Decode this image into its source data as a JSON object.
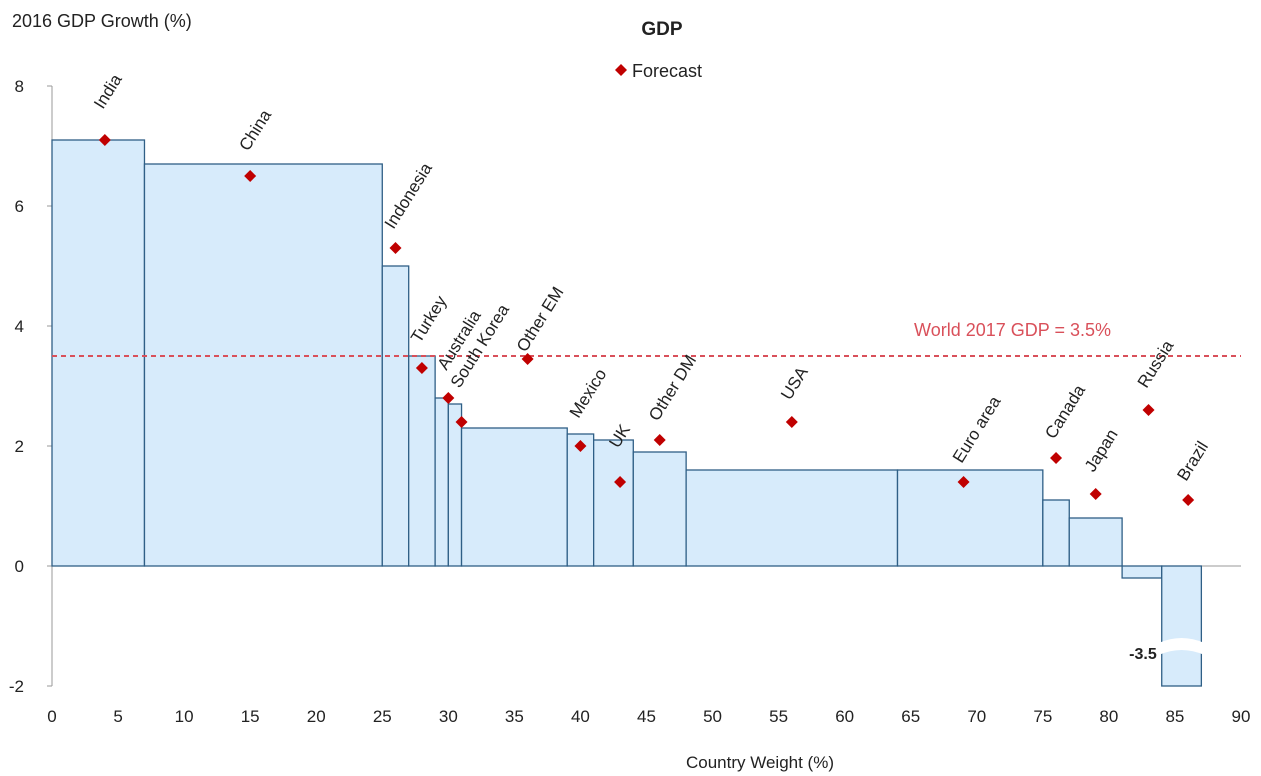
{
  "chart_data": {
    "type": "bar",
    "title": "GDP",
    "ylabel": "2016 GDP Growth (%)",
    "xlabel": "Country Weight (%)",
    "xlim": [
      0,
      90
    ],
    "ylim": [
      -2,
      8
    ],
    "xticks": [
      "0",
      "5",
      "10",
      "15",
      "20",
      "25",
      "30",
      "35",
      "40",
      "45",
      "50",
      "55",
      "60",
      "65",
      "70",
      "75",
      "80",
      "85",
      "90"
    ],
    "yticks": [
      "-2",
      "0",
      "2",
      "4",
      "6",
      "8"
    ],
    "legend": {
      "label": "Forecast",
      "position": "top-center"
    },
    "reference_line": {
      "label": "World 2017 GDP = 3.5%",
      "value": 3.5
    },
    "bars": [
      {
        "name": "India",
        "x0": 0,
        "x1": 7,
        "growth_2016": 7.1,
        "forecast_2017": 7.1
      },
      {
        "name": "China",
        "x0": 7,
        "x1": 25,
        "growth_2016": 6.7,
        "forecast_2017": 6.5
      },
      {
        "name": "Indonesia",
        "x0": 25,
        "x1": 27,
        "growth_2016": 5.0,
        "forecast_2017": 5.3
      },
      {
        "name": "Turkey",
        "x0": 27,
        "x1": 29,
        "growth_2016": 3.5,
        "forecast_2017": 3.3
      },
      {
        "name": "Australia",
        "x0": 29,
        "x1": 30,
        "growth_2016": 2.8,
        "forecast_2017": 2.8
      },
      {
        "name": "South Korea",
        "x0": 30,
        "x1": 31,
        "growth_2016": 2.7,
        "forecast_2017": 2.4
      },
      {
        "name": "Other EM",
        "x0": 31,
        "x1": 39,
        "growth_2016": 2.3,
        "forecast_2017": 3.45
      },
      {
        "name": "Mexico",
        "x0": 39,
        "x1": 41,
        "growth_2016": 2.2,
        "forecast_2017": 2.0
      },
      {
        "name": "UK",
        "x0": 41,
        "x1": 44,
        "growth_2016": 2.1,
        "forecast_2017": 1.4
      },
      {
        "name": "Other DM",
        "x0": 44,
        "x1": 48,
        "growth_2016": 1.9,
        "forecast_2017": 2.1
      },
      {
        "name": "USA",
        "x0": 48,
        "x1": 64,
        "growth_2016": 1.6,
        "forecast_2017": 2.4
      },
      {
        "name": "Euro area",
        "x0": 64,
        "x1": 75,
        "growth_2016": 1.6,
        "forecast_2017": 1.4
      },
      {
        "name": "Canada",
        "x0": 75,
        "x1": 77,
        "growth_2016": 1.1,
        "forecast_2017": 1.8
      },
      {
        "name": "Japan",
        "x0": 77,
        "x1": 81,
        "growth_2016": 0.8,
        "forecast_2017": 1.2
      },
      {
        "name": "Russia",
        "x0": 81,
        "x1": 84,
        "growth_2016": -0.2,
        "forecast_2017": 2.6
      },
      {
        "name": "Brazil",
        "x0": 84,
        "x1": 87,
        "growth_2016": -3.5,
        "forecast_2017": 1.1
      }
    ],
    "forecast_x": [
      4,
      15,
      26,
      28,
      30,
      31,
      36,
      40,
      43,
      46,
      56,
      69,
      76,
      79,
      83,
      86
    ],
    "labels_x": [
      4,
      15,
      26,
      28,
      30,
      31,
      36,
      40,
      43,
      46,
      56,
      69,
      76,
      79,
      83,
      86
    ],
    "labels_y": [
      7.6,
      6.9,
      5.6,
      3.7,
      3.25,
      2.95,
      3.55,
      2.45,
      1.95,
      2.4,
      2.75,
      1.7,
      2.1,
      1.55,
      2.95,
      1.4
    ],
    "truncated_bar_label": "-3.5",
    "colors": {
      "bar_fill": "#d7ebfb",
      "bar_edge": "#2f5f86",
      "forecast": "#c00000",
      "reference_line": "#d9505a"
    }
  }
}
